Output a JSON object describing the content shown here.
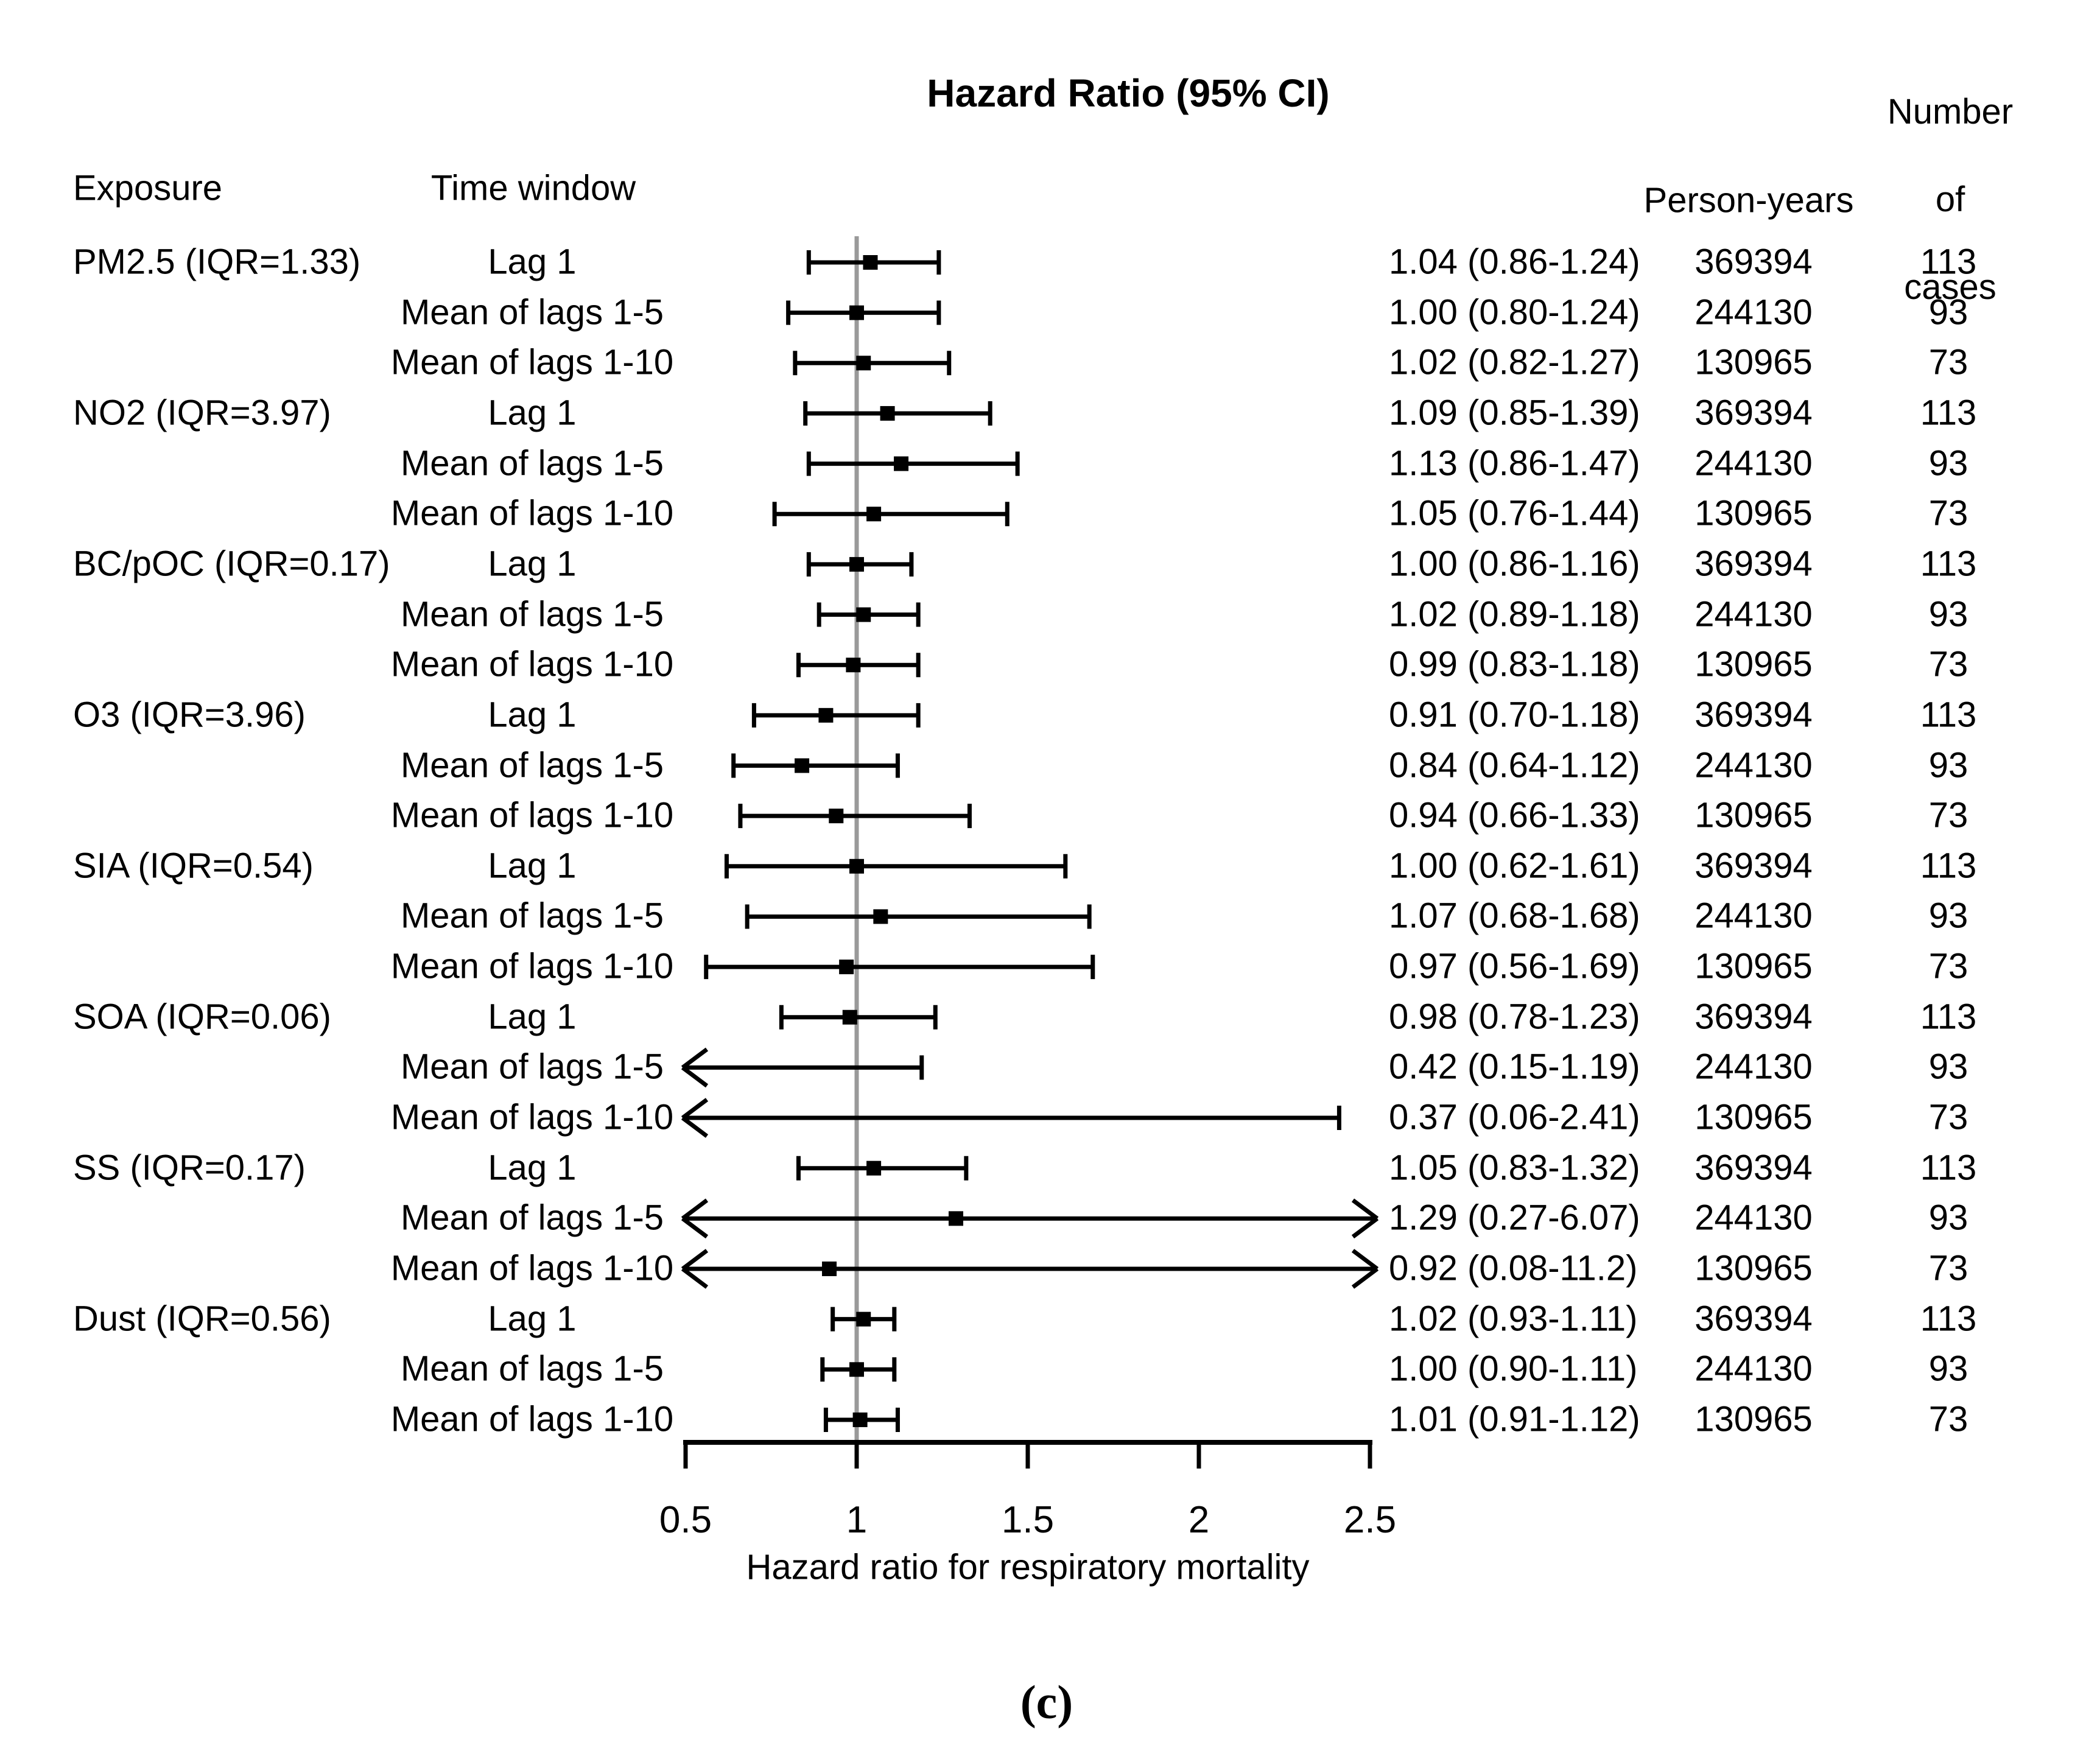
{
  "labels": {
    "title": "Hazard Ratio (95% CI)",
    "col_exposure": "Exposure",
    "col_time_window": "Time window",
    "col_person_years": "Person-years",
    "col_cases": "Number of\ncases",
    "caption": "(c)"
  },
  "colors": {
    "ink": "#000000",
    "reference_line": "#999999",
    "background": "#ffffff"
  },
  "chart_data": {
    "type": "forest",
    "title": "Hazard Ratio (95% CI)",
    "xlabel": "Hazard ratio for respiratory mortality",
    "xlim": [
      0.5,
      2.5
    ],
    "reference_value": 1,
    "grid": false,
    "x_ticks": [
      {
        "value": 0.5,
        "label": "0.5"
      },
      {
        "value": 1,
        "label": "1"
      },
      {
        "value": 1.5,
        "label": "1.5"
      },
      {
        "value": 2,
        "label": "2"
      },
      {
        "value": 2.5,
        "label": "2.5"
      }
    ],
    "rows": [
      {
        "exposure": "PM2.5 (IQR=1.33)",
        "time_window": "Lag 1",
        "hr": 1.04,
        "ci_low": 0.86,
        "ci_high": 1.24,
        "label": "1.04 (0.86-1.24)",
        "person_years": "369394",
        "cases": "113"
      },
      {
        "exposure": "",
        "time_window": "Mean of lags 1-5",
        "hr": 1.0,
        "ci_low": 0.8,
        "ci_high": 1.24,
        "label": "1.00 (0.80-1.24)",
        "person_years": "244130",
        "cases": "93"
      },
      {
        "exposure": "",
        "time_window": "Mean of lags 1-10",
        "hr": 1.02,
        "ci_low": 0.82,
        "ci_high": 1.27,
        "label": "1.02 (0.82-1.27)",
        "person_years": "130965",
        "cases": "73"
      },
      {
        "exposure": "NO2 (IQR=3.97)",
        "time_window": "Lag 1",
        "hr": 1.09,
        "ci_low": 0.85,
        "ci_high": 1.39,
        "label": "1.09 (0.85-1.39)",
        "person_years": "369394",
        "cases": "113"
      },
      {
        "exposure": "",
        "time_window": "Mean of lags 1-5",
        "hr": 1.13,
        "ci_low": 0.86,
        "ci_high": 1.47,
        "label": "1.13 (0.86-1.47)",
        "person_years": "244130",
        "cases": "93"
      },
      {
        "exposure": "",
        "time_window": "Mean of lags 1-10",
        "hr": 1.05,
        "ci_low": 0.76,
        "ci_high": 1.44,
        "label": "1.05 (0.76-1.44)",
        "person_years": "130965",
        "cases": "73"
      },
      {
        "exposure": "BC/pOC (IQR=0.17)",
        "time_window": "Lag 1",
        "hr": 1.0,
        "ci_low": 0.86,
        "ci_high": 1.16,
        "label": "1.00 (0.86-1.16)",
        "person_years": "369394",
        "cases": "113"
      },
      {
        "exposure": "",
        "time_window": "Mean of lags 1-5",
        "hr": 1.02,
        "ci_low": 0.89,
        "ci_high": 1.18,
        "label": "1.02 (0.89-1.18)",
        "person_years": "244130",
        "cases": "93"
      },
      {
        "exposure": "",
        "time_window": "Mean of lags 1-10",
        "hr": 0.99,
        "ci_low": 0.83,
        "ci_high": 1.18,
        "label": "0.99 (0.83-1.18)",
        "person_years": "130965",
        "cases": "73"
      },
      {
        "exposure": "O3 (IQR=3.96)",
        "time_window": "Lag 1",
        "hr": 0.91,
        "ci_low": 0.7,
        "ci_high": 1.18,
        "label": "0.91 (0.70-1.18)",
        "person_years": "369394",
        "cases": "113"
      },
      {
        "exposure": "",
        "time_window": "Mean of lags 1-5",
        "hr": 0.84,
        "ci_low": 0.64,
        "ci_high": 1.12,
        "label": "0.84 (0.64-1.12)",
        "person_years": "244130",
        "cases": "93"
      },
      {
        "exposure": "",
        "time_window": "Mean of lags 1-10",
        "hr": 0.94,
        "ci_low": 0.66,
        "ci_high": 1.33,
        "label": "0.94 (0.66-1.33)",
        "person_years": "130965",
        "cases": "73"
      },
      {
        "exposure": "SIA (IQR=0.54)",
        "time_window": "Lag 1",
        "hr": 1.0,
        "ci_low": 0.62,
        "ci_high": 1.61,
        "label": "1.00 (0.62-1.61)",
        "person_years": "369394",
        "cases": "113"
      },
      {
        "exposure": "",
        "time_window": "Mean of lags 1-5",
        "hr": 1.07,
        "ci_low": 0.68,
        "ci_high": 1.68,
        "label": "1.07 (0.68-1.68)",
        "person_years": "244130",
        "cases": "93"
      },
      {
        "exposure": "",
        "time_window": "Mean of lags 1-10",
        "hr": 0.97,
        "ci_low": 0.56,
        "ci_high": 1.69,
        "label": "0.97 (0.56-1.69)",
        "person_years": "130965",
        "cases": "73"
      },
      {
        "exposure": "SOA (IQR=0.06)",
        "time_window": "Lag 1",
        "hr": 0.98,
        "ci_low": 0.78,
        "ci_high": 1.23,
        "label": "0.98 (0.78-1.23)",
        "person_years": "369394",
        "cases": "113"
      },
      {
        "exposure": "",
        "time_window": "Mean of lags 1-5",
        "hr": 0.42,
        "ci_low": 0.15,
        "ci_high": 1.19,
        "label": "0.42 (0.15-1.19)",
        "person_years": "244130",
        "cases": "93"
      },
      {
        "exposure": "",
        "time_window": "Mean of lags 1-10",
        "hr": 0.37,
        "ci_low": 0.06,
        "ci_high": 2.41,
        "label": "0.37 (0.06-2.41)",
        "person_years": "130965",
        "cases": "73"
      },
      {
        "exposure": "SS (IQR=0.17)",
        "time_window": "Lag 1",
        "hr": 1.05,
        "ci_low": 0.83,
        "ci_high": 1.32,
        "label": "1.05 (0.83-1.32)",
        "person_years": "369394",
        "cases": "113"
      },
      {
        "exposure": "",
        "time_window": "Mean of lags 1-5",
        "hr": 1.29,
        "ci_low": 0.27,
        "ci_high": 6.07,
        "label": "1.29 (0.27-6.07)",
        "person_years": "244130",
        "cases": "93"
      },
      {
        "exposure": "",
        "time_window": "Mean of lags 1-10",
        "hr": 0.92,
        "ci_low": 0.08,
        "ci_high": 11.2,
        "label": "0.92 (0.08-11.2)",
        "person_years": "130965",
        "cases": "73"
      },
      {
        "exposure": "Dust (IQR=0.56)",
        "time_window": "Lag 1",
        "hr": 1.02,
        "ci_low": 0.93,
        "ci_high": 1.11,
        "label": "1.02 (0.93-1.11)",
        "person_years": "369394",
        "cases": "113"
      },
      {
        "exposure": "",
        "time_window": "Mean of lags 1-5",
        "hr": 1.0,
        "ci_low": 0.9,
        "ci_high": 1.11,
        "label": "1.00 (0.90-1.11)",
        "person_years": "244130",
        "cases": "93"
      },
      {
        "exposure": "",
        "time_window": "Mean of lags 1-10",
        "hr": 1.01,
        "ci_low": 0.91,
        "ci_high": 1.12,
        "label": "1.01 (0.91-1.12)",
        "person_years": "130965",
        "cases": "73"
      }
    ]
  }
}
